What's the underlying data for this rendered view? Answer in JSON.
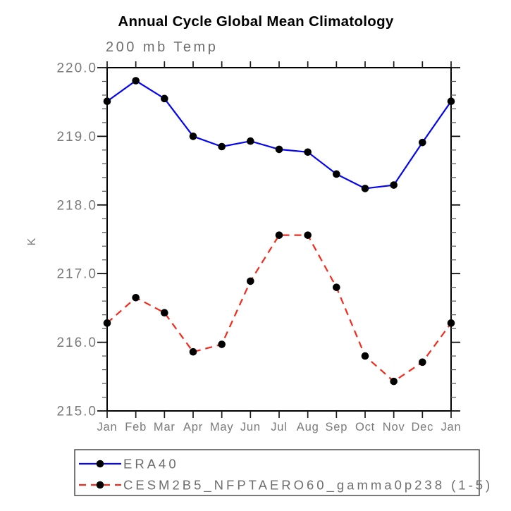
{
  "chart_data": {
    "type": "line",
    "title": "Annual Cycle Global Mean Climatology",
    "subtitle": "200 mb Temp",
    "xlabel": "",
    "ylabel": "K",
    "ylim": [
      215.0,
      220.0
    ],
    "y_major_step": 1.0,
    "y_minor_step": 0.2,
    "yticks": [
      "215.0",
      "216.0",
      "217.0",
      "218.0",
      "219.0",
      "220.0"
    ],
    "grid": "off",
    "legend_position": "bottom-left-box",
    "categories": [
      "Jan",
      "Feb",
      "Mar",
      "Apr",
      "May",
      "Jun",
      "Jul",
      "Aug",
      "Sep",
      "Oct",
      "Nov",
      "Dec",
      "Jan"
    ],
    "series": [
      {
        "name": "ERA40",
        "color": "#0505f0",
        "line_style": "solid",
        "marker": "filled-circle",
        "marker_color": "#000000",
        "values": [
          219.51,
          219.81,
          219.55,
          219.0,
          218.85,
          218.93,
          218.81,
          218.77,
          218.45,
          218.24,
          218.29,
          218.91,
          219.51
        ]
      },
      {
        "name": "CESM2B5_NFPTAERO60_gamma0p238 (1-5)",
        "color": "#f42a1c",
        "line_style": "dashed",
        "marker": "filled-circle",
        "marker_color": "#000000",
        "values": [
          216.28,
          216.65,
          216.43,
          215.86,
          215.97,
          216.89,
          217.56,
          217.56,
          216.8,
          215.8,
          215.43,
          215.71,
          216.28
        ]
      }
    ]
  }
}
